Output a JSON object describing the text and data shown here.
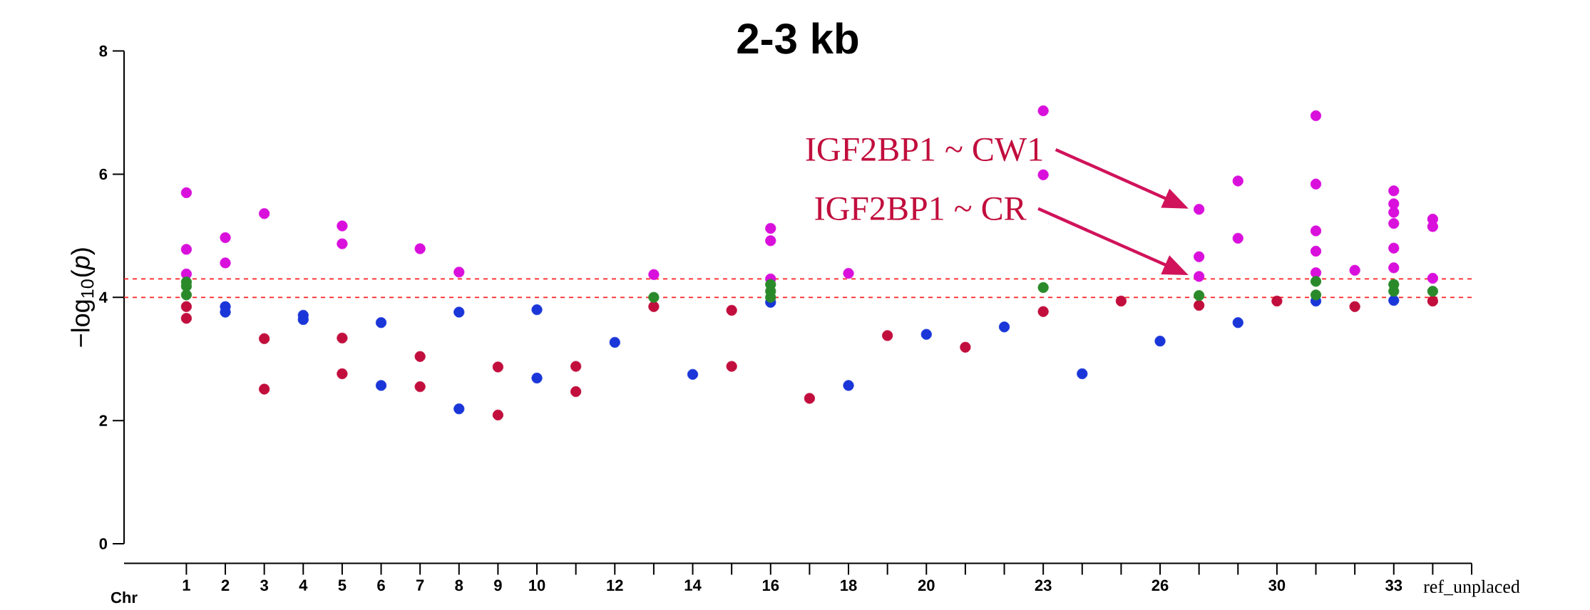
{
  "chart_data": {
    "type": "scatter",
    "title": "2-3 kb",
    "xlabel": "Chr",
    "ylabel": "−log$_{10}$(*p*)",
    "categories": [
      "1",
      "2",
      "3",
      "4",
      "5",
      "6",
      "7",
      "8",
      "9",
      "10",
      null,
      "12",
      null,
      "14",
      null,
      "16",
      null,
      "18",
      null,
      "20",
      null,
      null,
      "23",
      null,
      null,
      "26",
      null,
      null,
      "30",
      null,
      null,
      "33",
      null,
      "ref_unplaced"
    ],
    "ylim": [
      0,
      8
    ],
    "yticks": [
      0,
      2,
      4,
      6,
      8
    ],
    "marker": "circle",
    "series": [
      {
        "colors": [
          "#c10e3d",
          "#1a36d9",
          "#c10e3d",
          "#1a36d9",
          "#c10e3d",
          "#1a36d9",
          "#c10e3d",
          "#1a36d9",
          "#c10e3d",
          "#1a36d9",
          "#c10e3d",
          "#1a36d9",
          "#c10e3d",
          "#1a36d9",
          "#c10e3d",
          "#1a36d9",
          "#c10e3d",
          "#1a36d9",
          "#c10e3d",
          "#1a36d9",
          "#c10e3d",
          "#1a36d9",
          "#c10e3d",
          "#1a36d9",
          "#c10e3d",
          "#1a36d9",
          "#c10e3d",
          "#1a36d9",
          "#c10e3d",
          "#1a36d9",
          "#c10e3d",
          "#1a36d9",
          "#c10e3d",
          "#1a36d9"
        ],
        "values": [
          3.85,
          3.85,
          3.33,
          3.71,
          3.34,
          3.59,
          3.04,
          3.76,
          2.87,
          3.8,
          2.88,
          3.27,
          3.85,
          2.75,
          3.79,
          3.92,
          2.36,
          2.57,
          3.38,
          3.4,
          3.19,
          3.52,
          3.77,
          2.76,
          3.94,
          3.29,
          3.87,
          3.59,
          3.94,
          3.94,
          3.85,
          3.95,
          3.94,
          null
        ]
      },
      {
        "colors": [
          "#c10e3d",
          "#1a36d9",
          "#c10e3d",
          "#1a36d9",
          "#c10e3d",
          "#1a36d9",
          "#c10e3d",
          "#1a36d9",
          "#c10e3d",
          "#1a36d9",
          "#c10e3d",
          "#1a36d9",
          "#c10e3d",
          "#1a36d9",
          "#c10e3d",
          "#1a36d9",
          "#c10e3d",
          "#1a36d9",
          "#c10e3d",
          "#1a36d9",
          "#c10e3d",
          "#1a36d9",
          "#c10e3d",
          "#1a36d9",
          "#c10e3d",
          "#1a36d9",
          "#c10e3d",
          "#1a36d9",
          "#c10e3d",
          "#1a36d9",
          "#c10e3d",
          "#1a36d9",
          "#c10e3d",
          "#1a36d9"
        ],
        "values": [
          3.66,
          3.76,
          2.51,
          3.64,
          2.76,
          2.57,
          2.55,
          2.19,
          2.09,
          2.69,
          2.47,
          null,
          null,
          null,
          2.88,
          null,
          null,
          null,
          null,
          null,
          null,
          null,
          null,
          null,
          null,
          null,
          null,
          null,
          null,
          null,
          null,
          null,
          null,
          null
        ]
      },
      {
        "color": "#d90fdc",
        "values": [
          5.7,
          4.97,
          5.36,
          null,
          5.16,
          null,
          4.79,
          4.41,
          null,
          null,
          null,
          null,
          4.37,
          null,
          null,
          5.12,
          null,
          4.39,
          null,
          null,
          null,
          null,
          7.03,
          null,
          null,
          null,
          5.43,
          5.89,
          null,
          6.95,
          4.44,
          5.73,
          5.27,
          null
        ]
      },
      {
        "color": "#d90fdc",
        "values": [
          4.78,
          4.56,
          null,
          null,
          4.87,
          null,
          null,
          null,
          null,
          null,
          null,
          null,
          null,
          null,
          null,
          4.92,
          null,
          null,
          null,
          null,
          null,
          null,
          5.99,
          null,
          null,
          null,
          4.66,
          4.96,
          null,
          5.84,
          null,
          5.52,
          5.15,
          null
        ]
      },
      {
        "color": "#d90fdc",
        "values": [
          4.38,
          null,
          null,
          null,
          null,
          null,
          null,
          null,
          null,
          null,
          null,
          null,
          null,
          null,
          null,
          4.3,
          null,
          null,
          null,
          null,
          null,
          null,
          null,
          null,
          null,
          null,
          4.34,
          null,
          null,
          5.08,
          null,
          5.38,
          4.31,
          null
        ]
      },
      {
        "color": "#d90fdc",
        "values": [
          null,
          null,
          null,
          null,
          null,
          null,
          null,
          null,
          null,
          null,
          null,
          null,
          null,
          null,
          null,
          null,
          null,
          null,
          null,
          null,
          null,
          null,
          null,
          null,
          null,
          null,
          null,
          null,
          null,
          4.75,
          null,
          5.2,
          null,
          null
        ]
      },
      {
        "color": "#d90fdc",
        "values": [
          null,
          null,
          null,
          null,
          null,
          null,
          null,
          null,
          null,
          null,
          null,
          null,
          null,
          null,
          null,
          null,
          null,
          null,
          null,
          null,
          null,
          null,
          null,
          null,
          null,
          null,
          null,
          null,
          null,
          4.4,
          null,
          4.8,
          null,
          null
        ]
      },
      {
        "color": "#d90fdc",
        "values": [
          null,
          null,
          null,
          null,
          null,
          null,
          null,
          null,
          null,
          null,
          null,
          null,
          null,
          null,
          null,
          null,
          null,
          null,
          null,
          null,
          null,
          null,
          null,
          null,
          null,
          null,
          null,
          null,
          null,
          null,
          null,
          4.48,
          null,
          null
        ]
      },
      {
        "color": "#2a8a2a",
        "values": [
          4.25,
          null,
          null,
          null,
          null,
          null,
          null,
          null,
          null,
          null,
          null,
          null,
          4.0,
          null,
          null,
          4.21,
          null,
          null,
          null,
          null,
          null,
          null,
          4.16,
          null,
          null,
          null,
          4.03,
          null,
          null,
          4.26,
          null,
          4.21,
          4.1,
          null
        ]
      },
      {
        "color": "#2a8a2a",
        "values": [
          4.18,
          null,
          null,
          null,
          null,
          null,
          null,
          null,
          null,
          null,
          null,
          null,
          null,
          null,
          null,
          4.1,
          null,
          null,
          null,
          null,
          null,
          null,
          null,
          null,
          null,
          null,
          null,
          null,
          null,
          4.04,
          null,
          4.1,
          null,
          null
        ]
      },
      {
        "color": "#2a8a2a",
        "values": [
          null,
          null,
          null,
          null,
          null,
          null,
          null,
          null,
          null,
          null,
          null,
          null,
          null,
          null,
          null,
          4.0,
          null,
          null,
          null,
          null,
          null,
          null,
          null,
          null,
          null,
          null,
          null,
          null,
          null,
          null,
          null,
          null,
          null,
          null
        ]
      },
      {
        "color": "#2a8a2a",
        "values": [
          4.04,
          null,
          null,
          null,
          null,
          null,
          null,
          null,
          null,
          null,
          null,
          null,
          null,
          null,
          null,
          null,
          null,
          null,
          null,
          null,
          null,
          null,
          null,
          null,
          null,
          null,
          null,
          null,
          null,
          null,
          null,
          null,
          null,
          null
        ]
      }
    ],
    "ref_lines": [
      {
        "axis": "y",
        "value": 4.3,
        "color": "#ff2020",
        "line_style": "dashed"
      },
      {
        "axis": "y",
        "value": 4.0,
        "color": "#ff2020",
        "line_style": "dashed"
      }
    ],
    "annotations": [
      "IGF2BP1 ~ CW1",
      "IGF2BP1 ~ CR"
    ]
  }
}
